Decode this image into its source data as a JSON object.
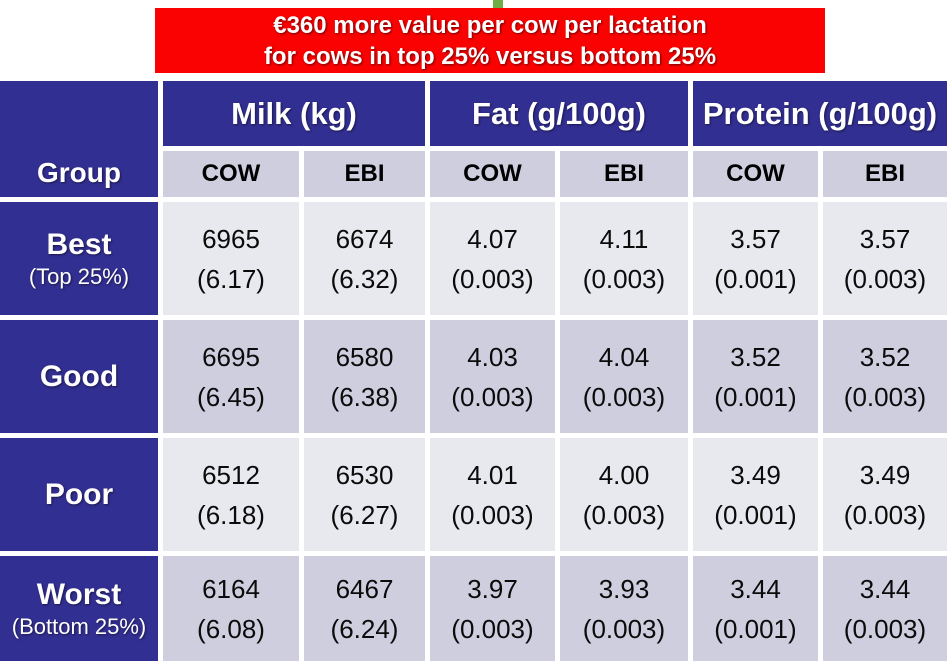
{
  "banner": {
    "line1": "€360 more value per cow per lactation",
    "line2": "for cows in top 25% versus bottom 25%",
    "bg_color": "#FA0202",
    "text_color": "#FFFFFF"
  },
  "decor": {
    "green_mark_color": "#6FAD46"
  },
  "colors": {
    "header_navy": "#322F92",
    "subheader_lavender": "#CFCEDF",
    "row_light": "#E8E8EF",
    "row_dark": "#CFCEDF",
    "grid_gap": "#FFFFFF"
  },
  "table": {
    "corner_label": "Group",
    "group_headers": [
      {
        "label": "Milk (kg)"
      },
      {
        "label": "Fat (g/100g)"
      },
      {
        "label": "Protein (g/100g)"
      }
    ],
    "sub_headers": [
      "COW",
      "EBI",
      "COW",
      "EBI",
      "COW",
      "EBI"
    ],
    "rows": [
      {
        "label": "Best",
        "sublabel": "(Top 25%)",
        "cells": [
          {
            "v": "6965",
            "se": "(6.17)"
          },
          {
            "v": "6674",
            "se": "(6.32)"
          },
          {
            "v": "4.07",
            "se": "(0.003)"
          },
          {
            "v": "4.11",
            "se": "(0.003)"
          },
          {
            "v": "3.57",
            "se": "(0.001)"
          },
          {
            "v": "3.57",
            "se": "(0.003)"
          }
        ]
      },
      {
        "label": "Good",
        "cells": [
          {
            "v": "6695",
            "se": "(6.45)"
          },
          {
            "v": "6580",
            "se": "(6.38)"
          },
          {
            "v": "4.03",
            "se": "(0.003)"
          },
          {
            "v": "4.04",
            "se": "(0.003)"
          },
          {
            "v": "3.52",
            "se": "(0.001)"
          },
          {
            "v": "3.52",
            "se": "(0.003)"
          }
        ]
      },
      {
        "label": "Poor",
        "cells": [
          {
            "v": "6512",
            "se": "(6.18)"
          },
          {
            "v": "6530",
            "se": "(6.27)"
          },
          {
            "v": "4.01",
            "se": "(0.003)"
          },
          {
            "v": "4.00",
            "se": "(0.003)"
          },
          {
            "v": "3.49",
            "se": "(0.001)"
          },
          {
            "v": "3.49",
            "se": "(0.003)"
          }
        ]
      },
      {
        "label": "Worst",
        "sublabel": "(Bottom 25%)",
        "cells": [
          {
            "v": "6164",
            "se": "(6.08)"
          },
          {
            "v": "6467",
            "se": "(6.24)"
          },
          {
            "v": "3.97",
            "se": "(0.003)"
          },
          {
            "v": "3.93",
            "se": "(0.003)"
          },
          {
            "v": "3.44",
            "se": "(0.001)"
          },
          {
            "v": "3.44",
            "se": "(0.003)"
          }
        ]
      }
    ]
  },
  "chart_data": {
    "type": "table",
    "title": "€360 more value per cow per lactation for cows in top 25% versus bottom 25%",
    "column_groups": [
      "Milk (kg)",
      "Fat (g/100g)",
      "Protein (g/100g)"
    ],
    "columns": [
      "Group",
      "Milk (kg) COW",
      "Milk (kg) EBI",
      "Fat (g/100g) COW",
      "Fat (g/100g) EBI",
      "Protein (g/100g) COW",
      "Protein (g/100g) EBI"
    ],
    "rows": [
      {
        "group": "Best (Top 25%)",
        "values": [
          6965,
          6674,
          4.07,
          4.11,
          3.57,
          3.57
        ],
        "standard_errors": [
          6.17,
          6.32,
          0.003,
          0.003,
          0.001,
          0.003
        ]
      },
      {
        "group": "Good",
        "values": [
          6695,
          6580,
          4.03,
          4.04,
          3.52,
          3.52
        ],
        "standard_errors": [
          6.45,
          6.38,
          0.003,
          0.003,
          0.001,
          0.003
        ]
      },
      {
        "group": "Poor",
        "values": [
          6512,
          6530,
          4.01,
          4.0,
          3.49,
          3.49
        ],
        "standard_errors": [
          6.18,
          6.27,
          0.003,
          0.003,
          0.001,
          0.003
        ]
      },
      {
        "group": "Worst (Bottom 25%)",
        "values": [
          6164,
          6467,
          3.97,
          3.93,
          3.44,
          3.44
        ],
        "standard_errors": [
          6.08,
          6.24,
          0.003,
          0.003,
          0.001,
          0.003
        ]
      }
    ]
  }
}
